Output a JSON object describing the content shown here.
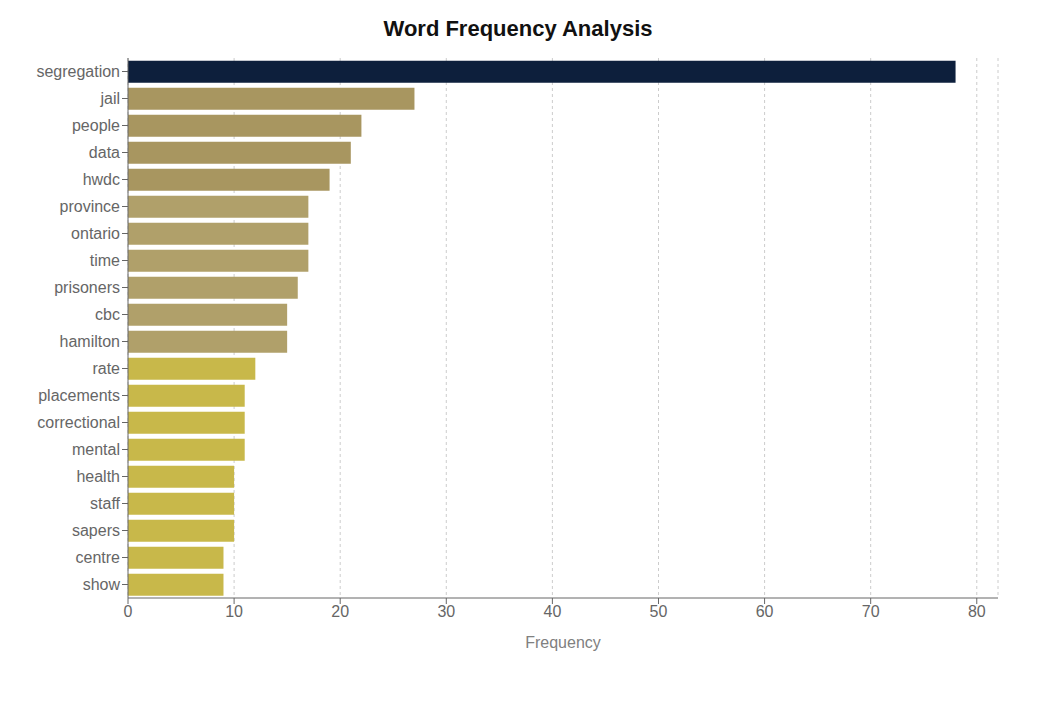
{
  "chart_data": {
    "type": "bar",
    "orientation": "horizontal",
    "title": "Word Frequency Analysis",
    "categories": [
      "segregation",
      "jail",
      "people",
      "data",
      "hwdc",
      "province",
      "ontario",
      "time",
      "prisoners",
      "cbc",
      "hamilton",
      "rate",
      "placements",
      "correctional",
      "mental",
      "health",
      "staff",
      "sapers",
      "centre",
      "show"
    ],
    "values": [
      78,
      27,
      22,
      21,
      19,
      17,
      17,
      17,
      16,
      15,
      15,
      12,
      11,
      11,
      11,
      10,
      10,
      10,
      9,
      9
    ],
    "colors": [
      "#0d1f3c",
      "#a89660",
      "#a89660",
      "#a89660",
      "#a89660",
      "#b0a06a",
      "#b0a06a",
      "#b0a06a",
      "#b0a06a",
      "#b0a06a",
      "#b0a06a",
      "#c8b84a",
      "#c8b84a",
      "#c8b84a",
      "#c8b84a",
      "#c8b84a",
      "#c8b84a",
      "#c8b84a",
      "#c8b84a",
      "#c8b84a"
    ],
    "xlabel": "Frequency",
    "xlim": [
      0,
      82
    ],
    "xticks": [
      0,
      10,
      20,
      30,
      40,
      50,
      60,
      70,
      80
    ],
    "grid": true
  }
}
